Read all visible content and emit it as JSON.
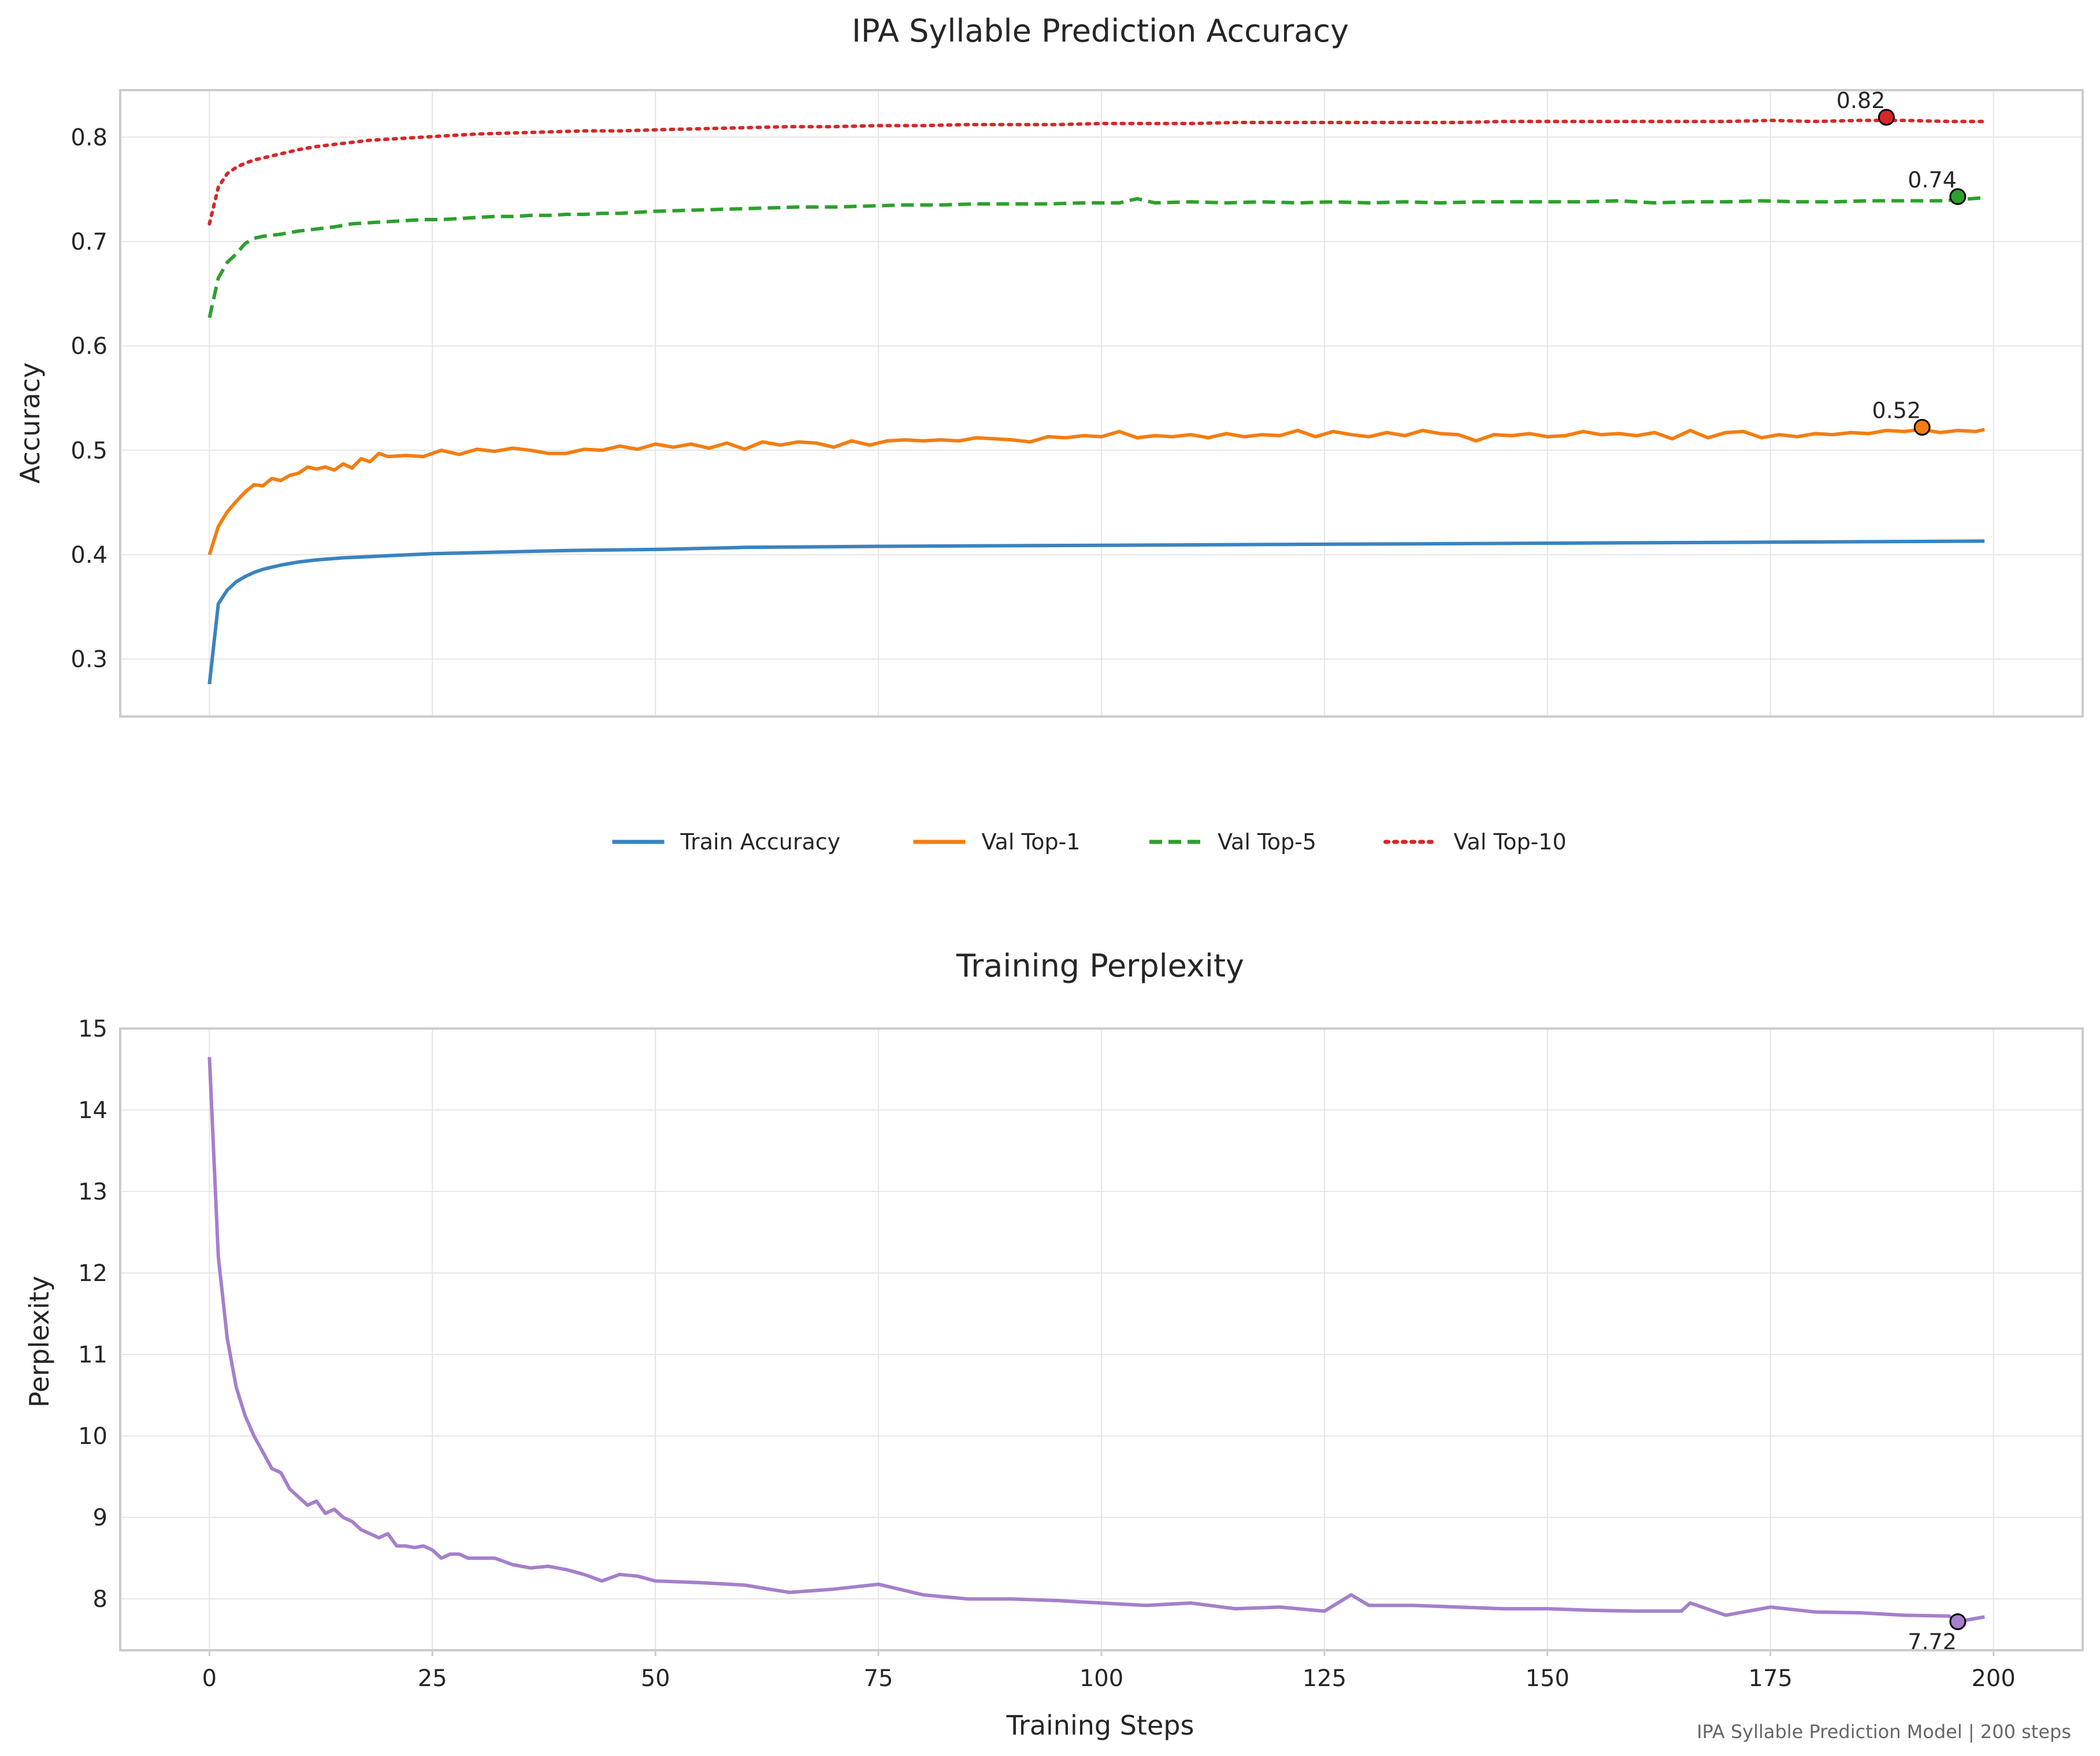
{
  "chart_data": [
    {
      "type": "line",
      "title": "IPA Syllable Prediction Accuracy",
      "xlabel": "",
      "ylabel": "Accuracy",
      "xlim": [
        -10,
        210
      ],
      "ylim": [
        0.245,
        0.845
      ],
      "xticks": [
        0,
        25,
        50,
        75,
        100,
        125,
        150,
        175,
        200
      ],
      "yticks": [
        0.3,
        0.4,
        0.5,
        0.6,
        0.7,
        0.8
      ],
      "ytick_labels": [
        "0.3",
        "0.4",
        "0.5",
        "0.6",
        "0.7",
        "0.8"
      ],
      "grid": true,
      "legend_placement": "bottom-center",
      "series": [
        {
          "name": "Train Accuracy",
          "color": "#3a83bf",
          "style": "solid",
          "x": [
            0,
            1,
            2,
            3,
            4,
            5,
            6,
            7,
            8,
            10,
            12,
            15,
            20,
            25,
            30,
            40,
            50,
            60,
            75,
            100,
            125,
            150,
            175,
            199
          ],
          "values": [
            0.276,
            0.353,
            0.366,
            0.374,
            0.379,
            0.383,
            0.386,
            0.388,
            0.39,
            0.393,
            0.395,
            0.397,
            0.399,
            0.401,
            0.402,
            0.404,
            0.405,
            0.407,
            0.408,
            0.409,
            0.41,
            0.411,
            0.412,
            0.413
          ]
        },
        {
          "name": "Val Top-1",
          "color": "#f47d12",
          "style": "solid",
          "x": [
            0,
            1,
            2,
            3,
            4,
            5,
            6,
            7,
            8,
            9,
            10,
            11,
            12,
            13,
            14,
            15,
            16,
            17,
            18,
            19,
            20,
            22,
            24,
            26,
            28,
            30,
            32,
            34,
            36,
            38,
            40,
            42,
            44,
            46,
            48,
            50,
            52,
            54,
            56,
            58,
            60,
            62,
            64,
            66,
            68,
            70,
            72,
            74,
            76,
            78,
            80,
            82,
            84,
            86,
            88,
            90,
            92,
            94,
            96,
            98,
            100,
            102,
            104,
            106,
            108,
            110,
            112,
            114,
            116,
            118,
            120,
            122,
            124,
            126,
            128,
            130,
            132,
            134,
            136,
            138,
            140,
            142,
            144,
            146,
            148,
            150,
            152,
            154,
            156,
            158,
            160,
            162,
            164,
            166,
            168,
            170,
            172,
            174,
            176,
            178,
            180,
            182,
            184,
            186,
            188,
            190,
            192,
            194,
            196,
            198,
            199
          ],
          "values": [
            0.4,
            0.427,
            0.441,
            0.451,
            0.46,
            0.467,
            0.466,
            0.473,
            0.471,
            0.476,
            0.478,
            0.484,
            0.482,
            0.484,
            0.481,
            0.487,
            0.483,
            0.492,
            0.489,
            0.497,
            0.494,
            0.495,
            0.494,
            0.5,
            0.496,
            0.501,
            0.499,
            0.502,
            0.5,
            0.497,
            0.497,
            0.501,
            0.5,
            0.504,
            0.501,
            0.506,
            0.503,
            0.506,
            0.502,
            0.507,
            0.501,
            0.508,
            0.505,
            0.508,
            0.507,
            0.503,
            0.509,
            0.505,
            0.509,
            0.51,
            0.509,
            0.51,
            0.509,
            0.512,
            0.511,
            0.51,
            0.508,
            0.513,
            0.512,
            0.514,
            0.513,
            0.518,
            0.512,
            0.514,
            0.513,
            0.515,
            0.512,
            0.516,
            0.513,
            0.515,
            0.514,
            0.519,
            0.513,
            0.518,
            0.515,
            0.513,
            0.517,
            0.514,
            0.519,
            0.516,
            0.515,
            0.509,
            0.515,
            0.514,
            0.516,
            0.513,
            0.514,
            0.518,
            0.515,
            0.516,
            0.514,
            0.517,
            0.511,
            0.519,
            0.512,
            0.517,
            0.518,
            0.512,
            0.515,
            0.513,
            0.516,
            0.515,
            0.517,
            0.516,
            0.519,
            0.518,
            0.52,
            0.517,
            0.519,
            0.518,
            0.52
          ]
        },
        {
          "name": "Val Top-5",
          "color": "#2ca02c",
          "style": "dashed",
          "x": [
            0,
            1,
            2,
            3,
            4,
            5,
            6,
            7,
            8,
            10,
            12,
            14,
            16,
            18,
            20,
            22,
            24,
            26,
            28,
            30,
            32,
            34,
            36,
            38,
            40,
            42,
            44,
            46,
            48,
            50,
            54,
            58,
            62,
            66,
            70,
            74,
            78,
            82,
            86,
            90,
            94,
            98,
            102,
            104,
            106,
            110,
            114,
            118,
            122,
            126,
            130,
            134,
            138,
            142,
            146,
            150,
            154,
            158,
            162,
            166,
            170,
            174,
            178,
            182,
            186,
            190,
            194,
            196,
            199
          ],
          "values": [
            0.627,
            0.665,
            0.68,
            0.688,
            0.698,
            0.703,
            0.705,
            0.706,
            0.707,
            0.71,
            0.712,
            0.714,
            0.717,
            0.718,
            0.719,
            0.72,
            0.721,
            0.721,
            0.722,
            0.723,
            0.724,
            0.724,
            0.725,
            0.725,
            0.726,
            0.726,
            0.727,
            0.727,
            0.728,
            0.729,
            0.73,
            0.731,
            0.732,
            0.733,
            0.733,
            0.734,
            0.735,
            0.735,
            0.736,
            0.736,
            0.736,
            0.737,
            0.737,
            0.741,
            0.737,
            0.738,
            0.737,
            0.738,
            0.737,
            0.738,
            0.737,
            0.738,
            0.737,
            0.738,
            0.738,
            0.738,
            0.738,
            0.739,
            0.737,
            0.738,
            0.738,
            0.739,
            0.738,
            0.738,
            0.739,
            0.739,
            0.739,
            0.74,
            0.742
          ]
        },
        {
          "name": "Val Top-10",
          "color": "#d62728",
          "style": "dotted",
          "x": [
            0,
            1,
            2,
            3,
            4,
            5,
            6,
            8,
            10,
            12,
            14,
            16,
            18,
            20,
            22,
            24,
            26,
            28,
            30,
            34,
            38,
            42,
            46,
            50,
            55,
            60,
            65,
            70,
            75,
            80,
            85,
            90,
            95,
            100,
            105,
            110,
            115,
            120,
            125,
            130,
            135,
            140,
            145,
            150,
            155,
            160,
            165,
            170,
            175,
            180,
            185,
            190,
            195,
            199
          ],
          "values": [
            0.717,
            0.752,
            0.765,
            0.771,
            0.775,
            0.778,
            0.78,
            0.784,
            0.788,
            0.791,
            0.793,
            0.795,
            0.797,
            0.798,
            0.799,
            0.8,
            0.801,
            0.802,
            0.803,
            0.804,
            0.805,
            0.806,
            0.806,
            0.807,
            0.808,
            0.809,
            0.81,
            0.81,
            0.811,
            0.811,
            0.812,
            0.812,
            0.812,
            0.813,
            0.813,
            0.813,
            0.814,
            0.814,
            0.814,
            0.814,
            0.814,
            0.814,
            0.815,
            0.815,
            0.815,
            0.815,
            0.815,
            0.815,
            0.816,
            0.815,
            0.816,
            0.816,
            0.815,
            0.815
          ]
        }
      ],
      "annotations": [
        {
          "series": "Val Top-10",
          "x": 188,
          "y": 0.819,
          "label": "0.82",
          "color": "#d62728"
        },
        {
          "series": "Val Top-5",
          "x": 196,
          "y": 0.743,
          "label": "0.74",
          "color": "#2ca02c"
        },
        {
          "series": "Val Top-1",
          "x": 192,
          "y": 0.522,
          "label": "0.52",
          "color": "#f47d12"
        }
      ]
    },
    {
      "type": "line",
      "title": "Training Perplexity",
      "xlabel": "Training Steps",
      "ylabel": "Perplexity",
      "xlim": [
        -10,
        210
      ],
      "ylim": [
        7.37,
        15.0
      ],
      "xticks": [
        0,
        25,
        50,
        75,
        100,
        125,
        150,
        175,
        200
      ],
      "yticks": [
        8,
        9,
        10,
        11,
        12,
        13,
        14,
        15
      ],
      "ytick_labels": [
        "8",
        "9",
        "10",
        "11",
        "12",
        "13",
        "14",
        "15"
      ],
      "grid": true,
      "series": [
        {
          "name": "",
          "color": "#a57fcc",
          "style": "solid",
          "x": [
            0,
            1,
            2,
            3,
            4,
            5,
            6,
            7,
            8,
            9,
            10,
            11,
            12,
            13,
            14,
            15,
            16,
            17,
            18,
            19,
            20,
            21,
            22,
            23,
            24,
            25,
            26,
            27,
            28,
            29,
            30,
            32,
            34,
            36,
            38,
            40,
            42,
            44,
            46,
            48,
            50,
            55,
            60,
            65,
            70,
            75,
            80,
            85,
            90,
            95,
            100,
            105,
            110,
            115,
            120,
            125,
            128,
            130,
            135,
            140,
            145,
            150,
            155,
            160,
            165,
            166,
            170,
            175,
            180,
            185,
            190,
            195,
            196,
            199
          ],
          "values": [
            14.65,
            12.2,
            11.2,
            10.6,
            10.25,
            10.0,
            9.8,
            9.6,
            9.55,
            9.35,
            9.25,
            9.15,
            9.2,
            9.05,
            9.1,
            9.0,
            8.95,
            8.85,
            8.8,
            8.75,
            8.8,
            8.65,
            8.65,
            8.63,
            8.65,
            8.6,
            8.5,
            8.55,
            8.55,
            8.5,
            8.5,
            8.5,
            8.42,
            8.38,
            8.4,
            8.36,
            8.3,
            8.22,
            8.3,
            8.28,
            8.22,
            8.2,
            8.17,
            8.08,
            8.12,
            8.18,
            8.05,
            8.0,
            8.0,
            7.98,
            7.95,
            7.92,
            7.95,
            7.88,
            7.9,
            7.85,
            8.05,
            7.92,
            7.92,
            7.9,
            7.88,
            7.88,
            7.86,
            7.85,
            7.85,
            7.95,
            7.8,
            7.9,
            7.84,
            7.83,
            7.8,
            7.79,
            7.72,
            7.78
          ]
        }
      ],
      "annotations": [
        {
          "x": 196,
          "y": 7.72,
          "label": "7.72",
          "color": "#a57fcc"
        }
      ]
    }
  ],
  "footer": "IPA Syllable Prediction Model | 200 steps"
}
